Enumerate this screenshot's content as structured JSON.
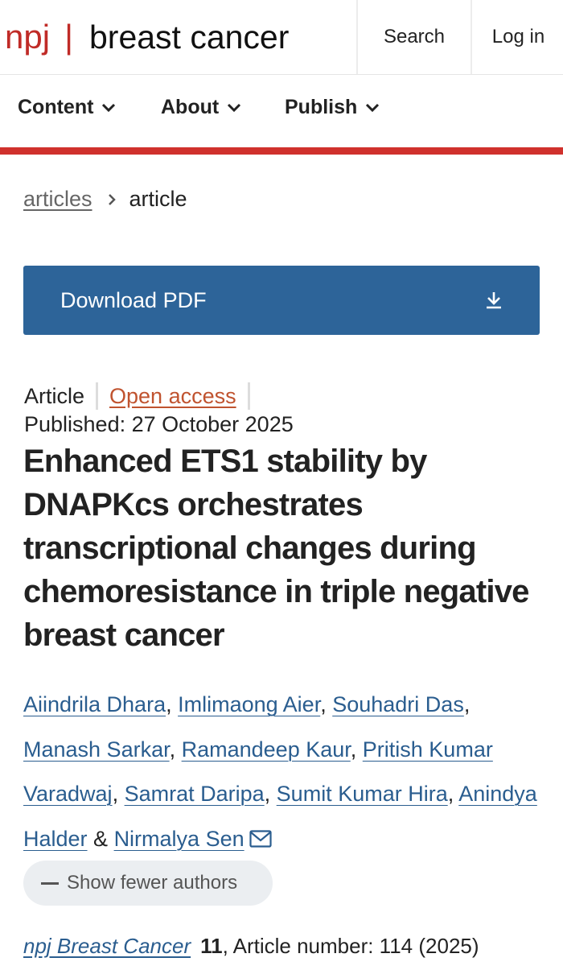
{
  "header": {
    "brand_prefix": "npj",
    "brand_separator": "|",
    "brand_name": "breast cancer",
    "search_label": "Search",
    "login_label": "Log in"
  },
  "nav": {
    "items": [
      {
        "label": "Content"
      },
      {
        "label": "About"
      },
      {
        "label": "Publish"
      }
    ]
  },
  "breadcrumb": {
    "link": "articles",
    "current": "article"
  },
  "download": {
    "label": "Download PDF"
  },
  "article": {
    "type": "Article",
    "access": "Open access",
    "published": "Published: 27 October 2025",
    "title": "Enhanced ETS1 stability by DNAPKcs orchestrates transcriptional changes during chemoresistance in triple negative breast cancer",
    "authors": [
      "Aiindrila Dhara",
      "Imlimaong Aier",
      "Souhadri Das",
      "Manash Sarkar",
      "Ramandeep Kaur",
      "Pritish Kumar Varadwaj",
      "Samrat Daripa",
      "Sumit Kumar Hira",
      "Anindya Halder",
      "Nirmalya Sen"
    ],
    "author_sep": ", ",
    "author_last_sep": " & ",
    "show_fewer_label": "Show fewer authors",
    "citation": {
      "journal": "npj Breast Cancer",
      "volume": "11",
      "rest": ", Article number: 114 (2025)"
    }
  },
  "colors": {
    "brand_red": "#c02b27",
    "download_blue": "#2d6499",
    "link_blue": "#2a5d8f",
    "open_access_orange": "#c0532f"
  },
  "icons": {
    "nav_chevron": "chevron-down-icon",
    "breadcrumb_chevron": "chevron-right-icon",
    "download": "download-icon",
    "corresponding_author": "mail-icon"
  }
}
